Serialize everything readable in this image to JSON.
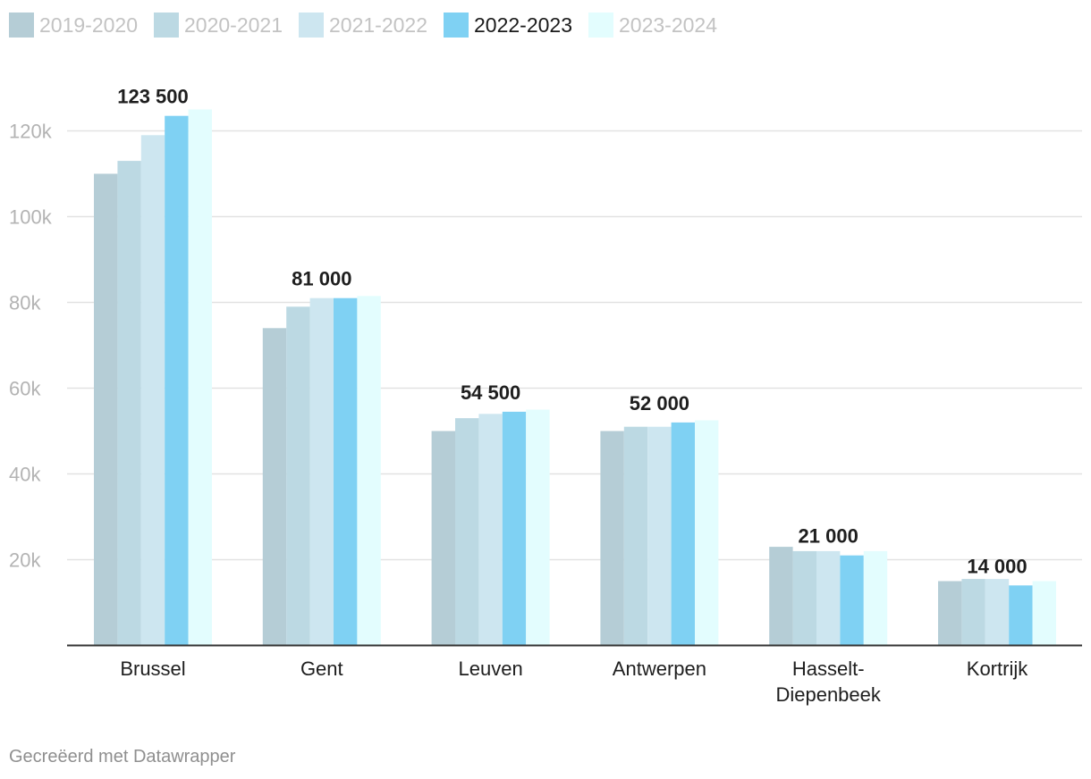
{
  "legend": {
    "items": [
      {
        "label": "2019-2020",
        "color": "#b5cdd6",
        "active": false
      },
      {
        "label": "2020-2021",
        "color": "#bcd9e3",
        "active": false
      },
      {
        "label": "2021-2022",
        "color": "#cde6f0",
        "active": false
      },
      {
        "label": "2022-2023",
        "color": "#7fd1f3",
        "active": true
      },
      {
        "label": "2023-2024",
        "color": "#e3fdfe",
        "active": false
      }
    ]
  },
  "chart_data": {
    "type": "bar",
    "title": "",
    "xlabel": "",
    "ylabel": "",
    "ylim": [
      0,
      125000
    ],
    "yticks": [
      20000,
      40000,
      60000,
      80000,
      100000,
      120000
    ],
    "ytick_labels": [
      "20k",
      "40k",
      "60k",
      "80k",
      "100k",
      "120k"
    ],
    "grid": true,
    "categories": [
      [
        "Brussel"
      ],
      [
        "Gent"
      ],
      [
        "Leuven"
      ],
      [
        "Antwerpen"
      ],
      [
        "Hasselt-",
        "Diepenbeek"
      ],
      [
        "Kortrijk"
      ]
    ],
    "series": [
      {
        "name": "2019-2020",
        "color": "#b5cdd6",
        "values": [
          110000,
          74000,
          50000,
          50000,
          23000,
          15000
        ]
      },
      {
        "name": "2020-2021",
        "color": "#bcd9e3",
        "values": [
          113000,
          79000,
          53000,
          51000,
          22000,
          15500
        ]
      },
      {
        "name": "2021-2022",
        "color": "#cde6f0",
        "values": [
          119000,
          81000,
          54000,
          51000,
          22000,
          15500
        ]
      },
      {
        "name": "2022-2023",
        "color": "#7fd1f3",
        "values": [
          123500,
          81000,
          54500,
          52000,
          21000,
          14000
        ]
      },
      {
        "name": "2023-2024",
        "color": "#e3fdfe",
        "values": [
          125000,
          81500,
          55000,
          52500,
          22000,
          15000
        ]
      }
    ],
    "highlight_series": "2022-2023",
    "data_labels": [
      "123 500",
      "81 000",
      "54 500",
      "52 000",
      "21 000",
      "14 000"
    ]
  },
  "footer": {
    "credit": "Gecreëerd met Datawrapper"
  }
}
